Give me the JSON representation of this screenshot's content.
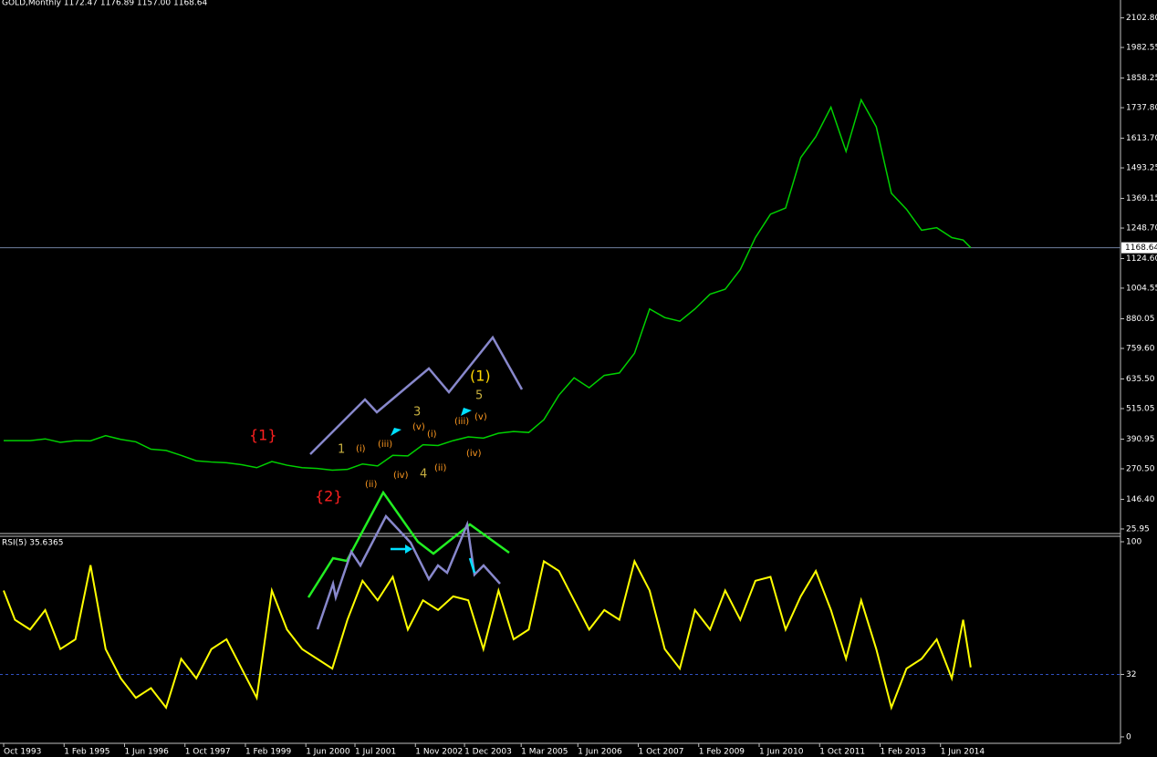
{
  "chart_data": [
    {
      "type": "line",
      "title": "GOLD,Monthly  1172.47 1176.89 1157.00 1168.64",
      "x": [
        "1993-10",
        "1994-01",
        "1994-05",
        "1994-09",
        "1995-01",
        "1995-05",
        "1995-09",
        "1996-01",
        "1996-05",
        "1996-09",
        "1997-01",
        "1997-05",
        "1997-09",
        "1998-01",
        "1998-05",
        "1998-09",
        "1999-01",
        "1999-05",
        "1999-09",
        "2000-01",
        "2000-05",
        "2000-09",
        "2001-01",
        "2001-05",
        "2001-09",
        "2002-01",
        "2002-05",
        "2002-09",
        "2003-01",
        "2003-05",
        "2003-09",
        "2004-01",
        "2004-05",
        "2004-09",
        "2005-01",
        "2005-05",
        "2005-09",
        "2006-01",
        "2006-05",
        "2006-09",
        "2007-01",
        "2007-05",
        "2007-09",
        "2008-01",
        "2008-05",
        "2008-09",
        "2009-01",
        "2009-05",
        "2009-09",
        "2010-01",
        "2010-05",
        "2010-09",
        "2011-01",
        "2011-05",
        "2011-09",
        "2012-01",
        "2012-05",
        "2012-09",
        "2013-01",
        "2013-05",
        "2013-09",
        "2014-01",
        "2014-05",
        "2014-09",
        "2014-12",
        "2015-02"
      ],
      "series": [
        {
          "color": "#00d000",
          "values": [
            385,
            385,
            385,
            392,
            378,
            385,
            384,
            405,
            390,
            380,
            350,
            345,
            325,
            303,
            298,
            295,
            287,
            275,
            300,
            285,
            275,
            272,
            265,
            268,
            290,
            282,
            325,
            323,
            368,
            365,
            385,
            400,
            395,
            415,
            422,
            418,
            470,
            570,
            640,
            600,
            650,
            660,
            740,
            920,
            885,
            870,
            920,
            980,
            1000,
            1080,
            1210,
            1305,
            1330,
            1535,
            1620,
            1740,
            1560,
            1770,
            1660,
            1390,
            1325,
            1240,
            1250,
            1210,
            1200,
            1169
          ]
        }
      ],
      "ylim": [
        11,
        2168
      ],
      "yticks": [
        {
          "value": 25.95,
          "label": "25.95"
        },
        {
          "value": 146.4,
          "label": "146.40"
        },
        {
          "value": 270.5,
          "label": "270.50"
        },
        {
          "value": 390.95,
          "label": "390.95"
        },
        {
          "value": 515.05,
          "label": "515.05"
        },
        {
          "value": 635.5,
          "label": "635.50"
        },
        {
          "value": 759.6,
          "label": "759.60"
        },
        {
          "value": 880.05,
          "label": "880.05"
        },
        {
          "value": 1004.55,
          "label": "1004.55"
        },
        {
          "value": 1124.6,
          "label": "1124.60"
        },
        {
          "value": 1248.7,
          "label": "1248.70"
        },
        {
          "value": 1369.15,
          "label": "1369.15"
        },
        {
          "value": 1493.25,
          "label": "1493.25"
        },
        {
          "value": 1613.7,
          "label": "1613.70"
        },
        {
          "value": 1737.8,
          "label": "1737.80"
        },
        {
          "value": 1858.25,
          "label": "1858.25"
        },
        {
          "value": 1982.55,
          "label": "1982.55"
        },
        {
          "value": 2102.8,
          "label": "2102.80"
        }
      ],
      "current": {
        "value": 1168.64,
        "label": "1168.64"
      },
      "xticks": [
        {
          "value": "1993-10",
          "label": "Oct 1993"
        },
        {
          "value": "1995-02",
          "label": "1 Feb 1995"
        },
        {
          "value": "1996-06",
          "label": "1 Jun 1996"
        },
        {
          "value": "1997-10",
          "label": "1 Oct 1997"
        },
        {
          "value": "1999-02",
          "label": "1 Feb 1999"
        },
        {
          "value": "2000-06",
          "label": "1 Jun 2000"
        },
        {
          "value": "2001-07",
          "label": "1 Jul 2001"
        },
        {
          "value": "2002-11",
          "label": "1 Nov 2002"
        },
        {
          "value": "2003-12",
          "label": "1 Dec 2003"
        },
        {
          "value": "2005-03",
          "label": "1 Mar 2005"
        },
        {
          "value": "2006-06",
          "label": "1 Jun 2006"
        },
        {
          "value": "2007-10",
          "label": "1 Oct 2007"
        },
        {
          "value": "2009-02",
          "label": "1 Feb 2009"
        },
        {
          "value": "2010-06",
          "label": "1 Jun 2010"
        },
        {
          "value": "2011-10",
          "label": "1 Oct 2011"
        },
        {
          "value": "2013-02",
          "label": "1 Feb 2013"
        },
        {
          "value": "2014-06",
          "label": "1 Jun 2014"
        }
      ],
      "annotations": [
        {
          "text": "{1}",
          "color": "#ff2020"
        },
        {
          "text": "{2}",
          "color": "#ff2020"
        },
        {
          "text": "(1)",
          "color": "#ffd800"
        },
        {
          "text": "5",
          "color": "#c8b040"
        },
        {
          "text": "3",
          "color": "#c8b040"
        },
        {
          "text": "1",
          "color": "#c8b040"
        },
        {
          "text": "4",
          "color": "#c8b040"
        },
        {
          "text": "(i)",
          "color": "#ff9a20"
        },
        {
          "text": "(ii)",
          "color": "#ff9a20"
        },
        {
          "text": "(iii)",
          "color": "#ff9a20"
        },
        {
          "text": "(iv)",
          "color": "#ff9a20"
        },
        {
          "text": "(v)",
          "color": "#ff9a20"
        },
        {
          "text": "(i)",
          "color": "#ff9a20"
        },
        {
          "text": "(ii)",
          "color": "#ff9a20"
        },
        {
          "text": "(iii)",
          "color": "#ff9a20"
        },
        {
          "text": "(iv)",
          "color": "#ff9a20"
        },
        {
          "text": "(v)",
          "color": "#ff9a20"
        }
      ]
    },
    {
      "type": "line",
      "title": "RSI(5) 35.6365",
      "color": "#ffff00",
      "values": [
        75,
        60,
        55,
        65,
        45,
        50,
        88,
        45,
        30,
        20,
        25,
        15,
        40,
        30,
        45,
        50,
        35,
        20,
        75,
        55,
        45,
        40,
        35,
        60,
        80,
        70,
        82,
        55,
        70,
        65,
        72,
        70,
        45,
        75,
        50,
        55,
        90,
        85,
        70,
        55,
        65,
        60,
        90,
        75,
        45,
        35,
        65,
        55,
        75,
        60,
        80,
        82,
        55,
        72,
        85,
        65,
        40,
        70,
        45,
        15,
        35,
        40,
        50,
        30,
        60,
        35.6365
      ],
      "ylim": [
        -3.3,
        102.8
      ],
      "yticks": [
        0,
        32,
        100
      ],
      "level": 32
    }
  ]
}
